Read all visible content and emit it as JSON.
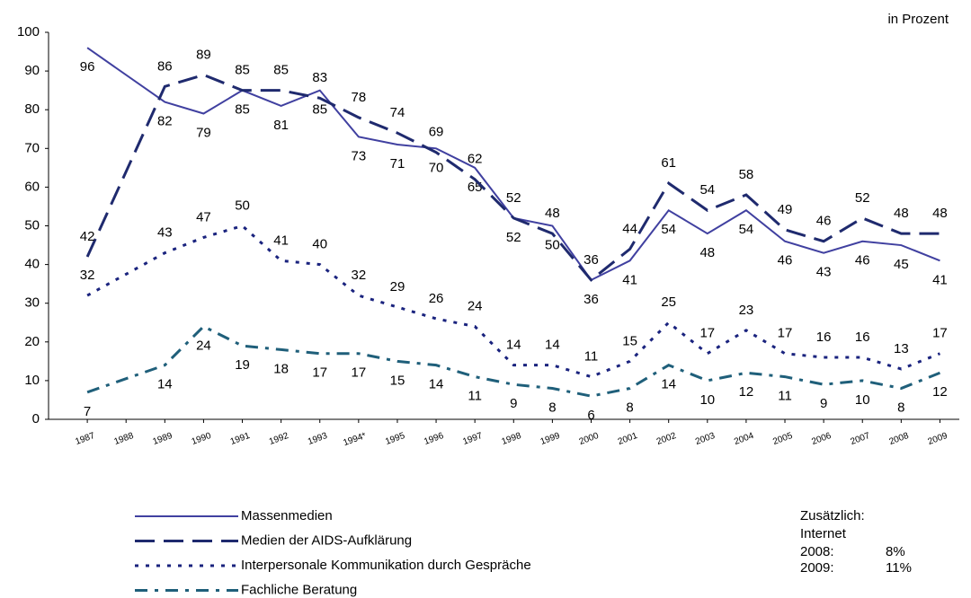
{
  "chart_data": {
    "type": "line",
    "unit_label": "in Prozent",
    "x": [
      1987,
      1989,
      1990,
      1991,
      1992,
      1993,
      1994,
      1995,
      1996,
      1997,
      1998,
      1999,
      2000,
      2001,
      2002,
      2003,
      2004,
      2005,
      2006,
      2007,
      2008,
      2009
    ],
    "xlim": [
      1986,
      2009.5
    ],
    "xticks": [
      1987,
      1988,
      1989,
      1990,
      1991,
      1992,
      1993,
      {
        "value": 1994,
        "label": "1994*"
      },
      1995,
      1996,
      1997,
      1998,
      1999,
      2000,
      2001,
      2002,
      2003,
      2004,
      2005,
      2006,
      2007,
      2008,
      2009
    ],
    "ylim": [
      0,
      100
    ],
    "yticks": [
      0,
      10,
      20,
      30,
      40,
      50,
      60,
      70,
      80,
      90,
      100
    ],
    "series": [
      {
        "name": "Massenmedien",
        "color": "#4040a0",
        "dash": "solid",
        "label_side": "below",
        "values": [
          96,
          82,
          79,
          85,
          81,
          85,
          73,
          71,
          70,
          65,
          52,
          50,
          36,
          41,
          54,
          48,
          54,
          46,
          43,
          46,
          45,
          41
        ]
      },
      {
        "name": "Medien der AIDS-Aufklärung",
        "color": "#1f2a6e",
        "dash": "long",
        "label_side": "above",
        "values": [
          42,
          86,
          89,
          85,
          85,
          83,
          78,
          74,
          69,
          62,
          52,
          48,
          36,
          44,
          61,
          54,
          58,
          49,
          46,
          52,
          48,
          48
        ]
      },
      {
        "name": "Interpersonale Kommunikation durch Gespräche",
        "color": "#1a237e",
        "dash": "dot",
        "label_side": "above",
        "values": [
          32,
          43,
          47,
          50,
          41,
          40,
          32,
          29,
          26,
          24,
          14,
          14,
          11,
          15,
          25,
          17,
          23,
          17,
          16,
          16,
          13,
          17
        ]
      },
      {
        "name": "Fachliche Beratung",
        "color": "#1f5f7a",
        "dash": "dashdot",
        "label_side": "below",
        "values": [
          7,
          14,
          24,
          19,
          18,
          17,
          17,
          15,
          14,
          11,
          9,
          8,
          6,
          8,
          14,
          10,
          12,
          11,
          9,
          10,
          8,
          12
        ]
      }
    ],
    "note": [
      "Zusätzlich:",
      "Internet",
      "2008:",
      "8%",
      "2009:",
      "11%"
    ]
  }
}
